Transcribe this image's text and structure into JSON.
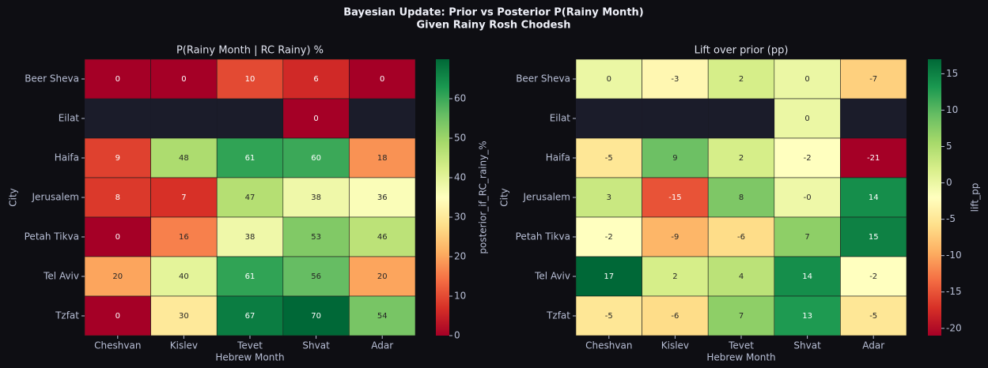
{
  "title": "Bayesian Update: Prior vs Posterior P(Rainy Month)",
  "subtitle": "Given Rainy Rosh Chodesh",
  "chart_data": [
    {
      "type": "heatmap",
      "title": "P(Rainy Month | RC Rainy) %",
      "x_label": "Hebrew Month",
      "y_label": "City",
      "categories": [
        "Cheshvan",
        "Kislev",
        "Tevet",
        "Shvat",
        "Adar"
      ],
      "rows": [
        "Beer Sheva",
        "Eilat",
        "Haifa",
        "Jerusalem",
        "Petah Tikva",
        "Tel Aviv",
        "Tzfat"
      ],
      "values": [
        [
          0,
          0,
          10,
          6,
          0
        ],
        [
          null,
          null,
          null,
          0,
          null
        ],
        [
          9,
          48,
          61,
          60,
          18
        ],
        [
          8,
          7,
          47,
          38,
          36
        ],
        [
          0,
          16,
          38,
          53,
          46
        ],
        [
          20,
          40,
          61,
          56,
          20
        ],
        [
          0,
          30,
          67,
          70,
          54
        ]
      ],
      "colorbar_label": "posterior_if_RC_rainy_%",
      "cmap": "RdYlGn",
      "nan_color": "#1b1c2a",
      "zlim": [
        0,
        70
      ],
      "zticks": [
        0,
        10,
        20,
        30,
        40,
        50,
        60
      ]
    },
    {
      "type": "heatmap",
      "title": "Lift over prior (pp)",
      "x_label": "Hebrew Month",
      "y_label": "City",
      "categories": [
        "Cheshvan",
        "Kislev",
        "Tevet",
        "Shvat",
        "Adar"
      ],
      "rows": [
        "Beer Sheva",
        "Eilat",
        "Haifa",
        "Jerusalem",
        "Petah Tikva",
        "Tel Aviv",
        "Tzfat"
      ],
      "values": [
        [
          0,
          -3,
          2,
          0,
          -7
        ],
        [
          null,
          null,
          null,
          0,
          null
        ],
        [
          -5,
          9,
          2,
          -2,
          -21
        ],
        [
          3,
          -15,
          8,
          -0.3,
          14
        ],
        [
          -2,
          -9,
          -6,
          7,
          15
        ],
        [
          17,
          2,
          4,
          14,
          -2
        ],
        [
          -5,
          -6,
          7,
          13,
          -5
        ]
      ],
      "value_labels": [
        [
          "0",
          "-3",
          "2",
          "0",
          "-7"
        ],
        [
          null,
          null,
          null,
          "0",
          null
        ],
        [
          "-5",
          "9",
          "2",
          "-2",
          "-21"
        ],
        [
          "3",
          "-15",
          "8",
          "-0",
          "14"
        ],
        [
          "-2",
          "-9",
          "-6",
          "7",
          "15"
        ],
        [
          "17",
          "2",
          "4",
          "14",
          "-2"
        ],
        [
          "-5",
          "-6",
          "7",
          "13",
          "-5"
        ]
      ],
      "colorbar_label": "lift_pp",
      "cmap": "RdYlGn",
      "nan_color": "#1b1c2a",
      "zlim": [
        -21,
        17
      ],
      "zticks": [
        -20,
        -15,
        -10,
        -5,
        0,
        5,
        10,
        15
      ]
    }
  ]
}
